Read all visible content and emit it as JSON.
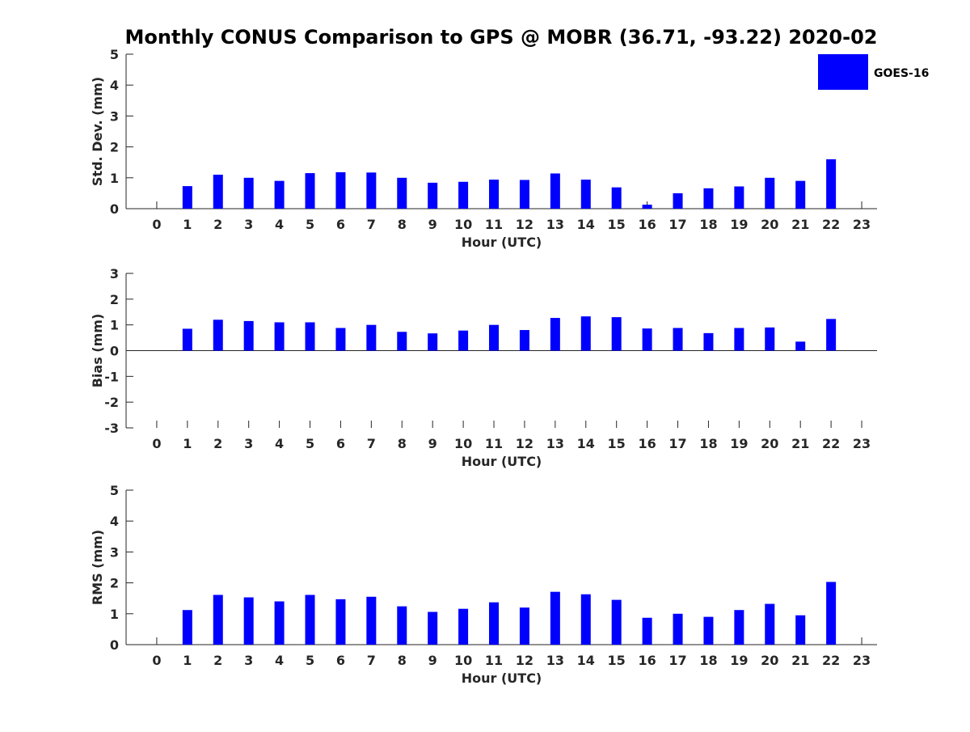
{
  "title": "Monthly CONUS Comparison to GPS @ MOBR (36.71, -93.22) 2020-02",
  "legend": {
    "label": "GOES-16",
    "color": "#0000ff"
  },
  "chart_data": [
    {
      "type": "bar",
      "xlabel": "Hour (UTC)",
      "ylabel": "Std. Dev. (mm)",
      "ylim": [
        0,
        5
      ],
      "yticks": [
        0,
        1,
        2,
        3,
        4,
        5
      ],
      "categories": [
        "0",
        "1",
        "2",
        "3",
        "4",
        "5",
        "6",
        "7",
        "8",
        "9",
        "10",
        "11",
        "12",
        "13",
        "14",
        "15",
        "16",
        "17",
        "18",
        "19",
        "20",
        "21",
        "22",
        "23"
      ],
      "series": [
        {
          "name": "GOES-16",
          "values": [
            null,
            0.73,
            1.1,
            1.0,
            0.9,
            1.15,
            1.18,
            1.17,
            1.0,
            0.84,
            0.87,
            0.94,
            0.93,
            1.14,
            0.94,
            0.69,
            0.13,
            0.5,
            0.66,
            0.72,
            1.0,
            0.9,
            1.6,
            null
          ]
        }
      ],
      "legend": "top-right",
      "grid": false
    },
    {
      "type": "bar",
      "xlabel": "Hour (UTC)",
      "ylabel": "Bias (mm)",
      "ylim": [
        -3,
        3
      ],
      "yticks": [
        -3,
        -2,
        -1,
        0,
        1,
        2,
        3
      ],
      "categories": [
        "0",
        "1",
        "2",
        "3",
        "4",
        "5",
        "6",
        "7",
        "8",
        "9",
        "10",
        "11",
        "12",
        "13",
        "14",
        "15",
        "16",
        "17",
        "18",
        "19",
        "20",
        "21",
        "22",
        "23"
      ],
      "series": [
        {
          "name": "GOES-16",
          "values": [
            null,
            0.85,
            1.2,
            1.15,
            1.1,
            1.1,
            0.88,
            1.0,
            0.73,
            0.67,
            0.78,
            1.0,
            0.8,
            1.27,
            1.33,
            1.3,
            0.86,
            0.88,
            0.68,
            0.88,
            0.9,
            0.35,
            1.23,
            null
          ]
        }
      ],
      "grid": false
    },
    {
      "type": "bar",
      "xlabel": "Hour (UTC)",
      "ylabel": "RMS (mm)",
      "ylim": [
        0,
        5
      ],
      "yticks": [
        0,
        1,
        2,
        3,
        4,
        5
      ],
      "categories": [
        "0",
        "1",
        "2",
        "3",
        "4",
        "5",
        "6",
        "7",
        "8",
        "9",
        "10",
        "11",
        "12",
        "13",
        "14",
        "15",
        "16",
        "17",
        "18",
        "19",
        "20",
        "21",
        "22",
        "23"
      ],
      "series": [
        {
          "name": "GOES-16",
          "values": [
            null,
            1.12,
            1.61,
            1.53,
            1.4,
            1.61,
            1.47,
            1.55,
            1.24,
            1.06,
            1.16,
            1.37,
            1.2,
            1.71,
            1.63,
            1.45,
            0.87,
            1.0,
            0.9,
            1.12,
            1.32,
            0.95,
            2.03,
            null
          ]
        }
      ],
      "grid": false
    }
  ]
}
